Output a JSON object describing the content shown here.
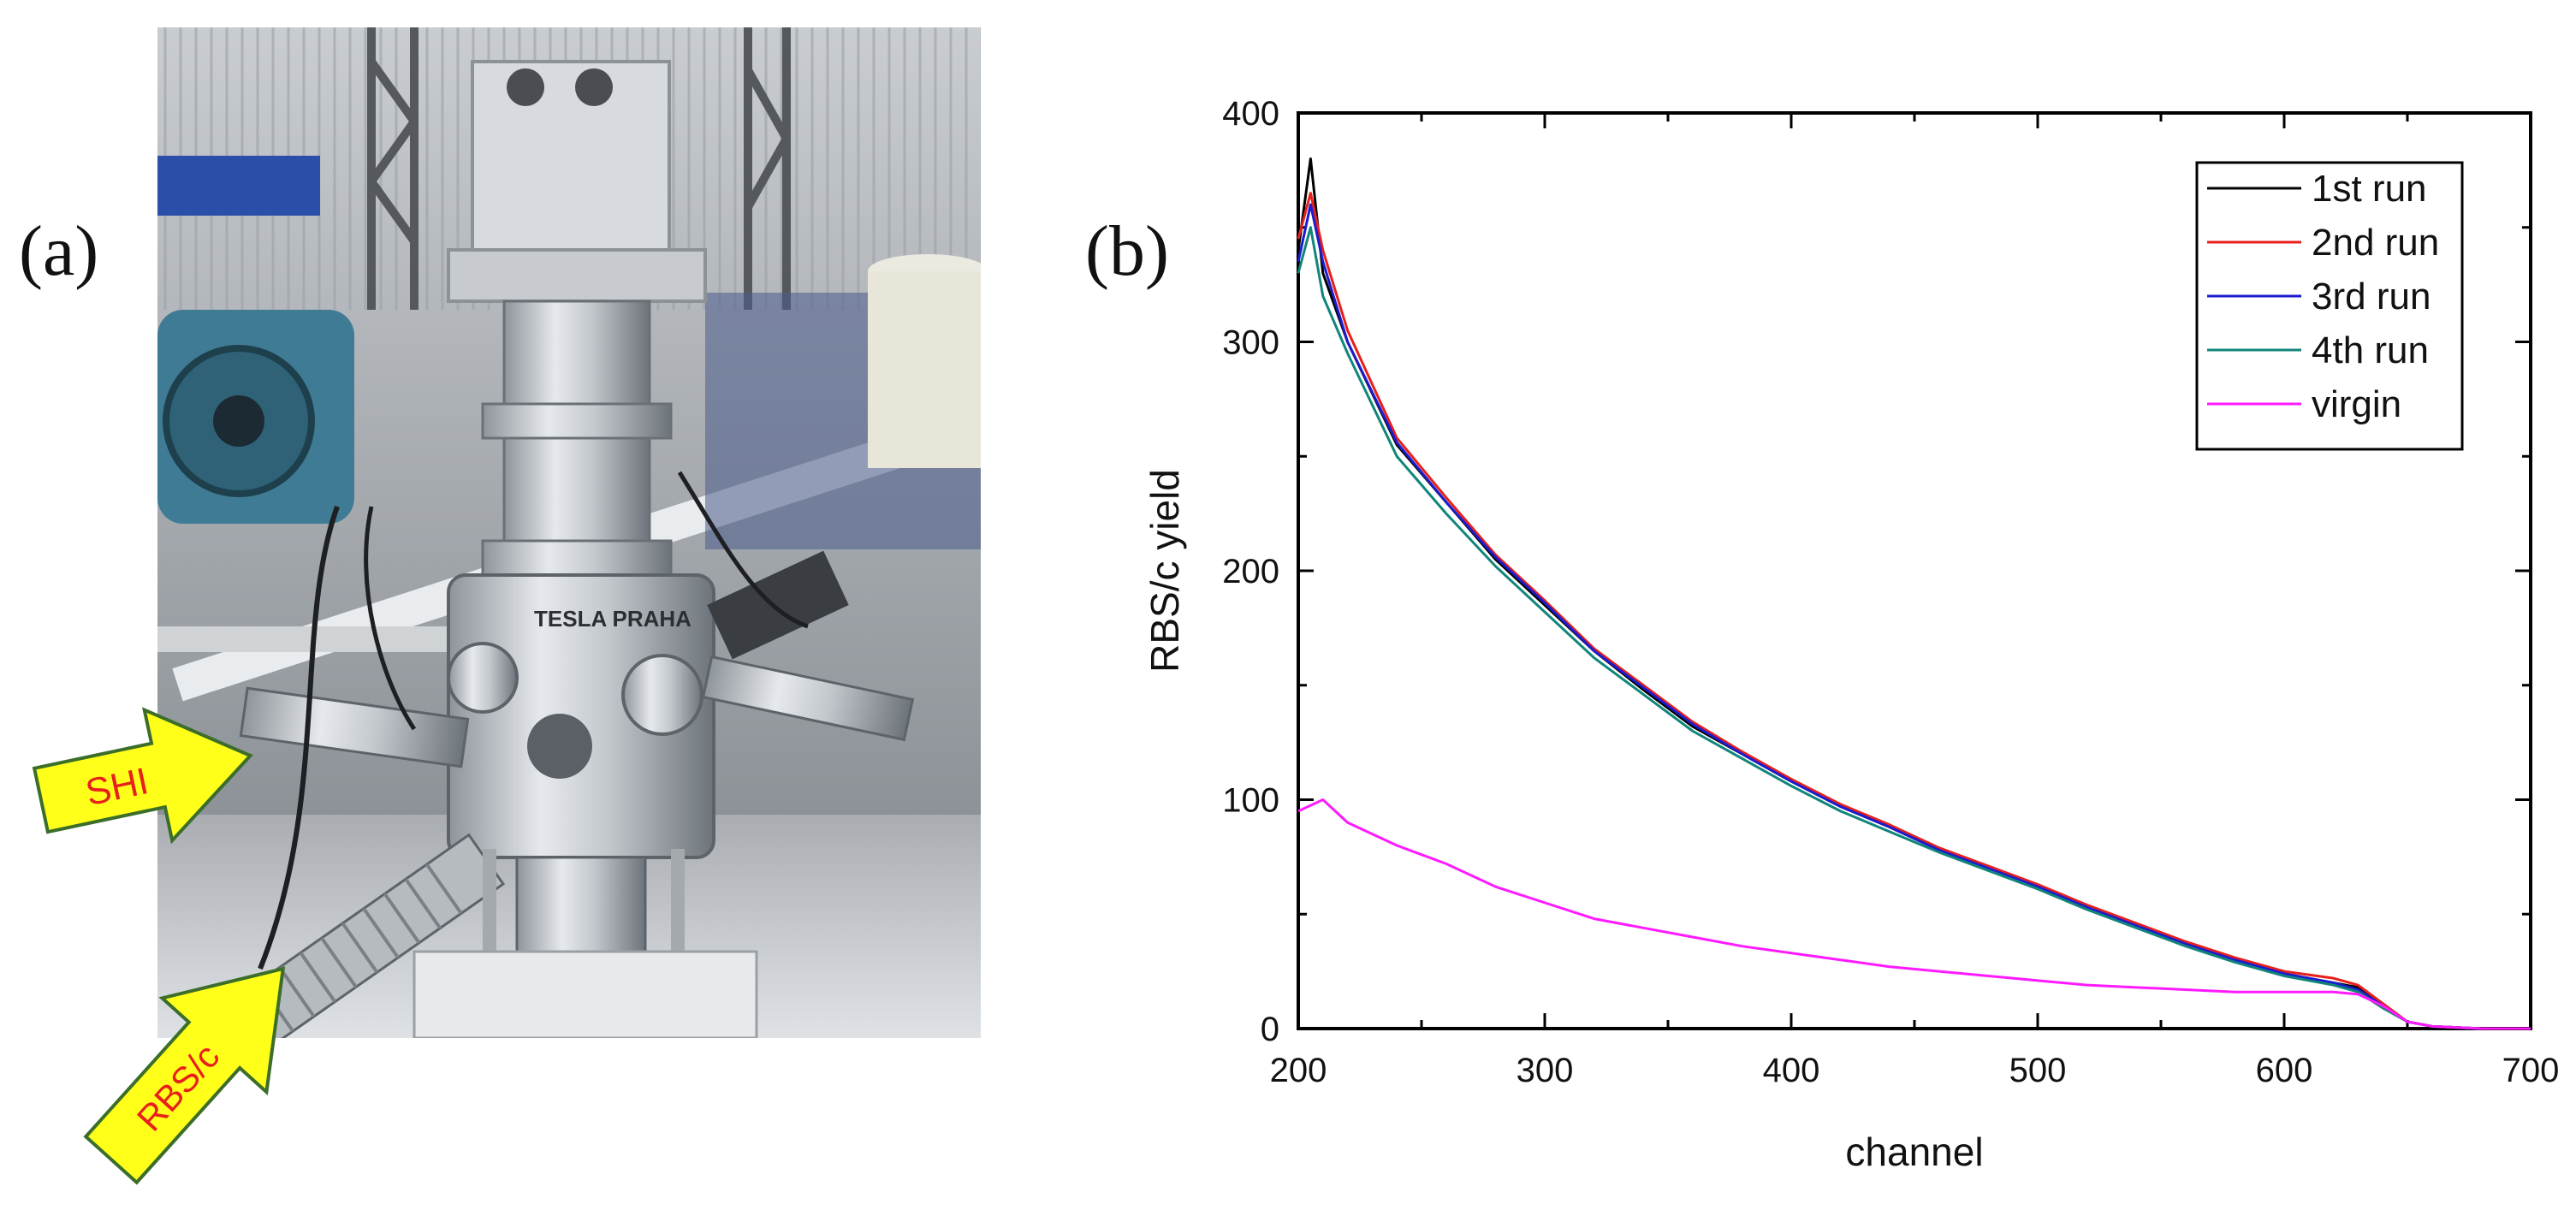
{
  "panels": {
    "a": "(a)",
    "b": "(b)"
  },
  "photo": {
    "chamber_label": "TESLA PRAHA",
    "arrows": [
      {
        "label": "SHI",
        "color": "#ffff1a",
        "text_color": "#e8201c"
      },
      {
        "label": "RBS/c",
        "color": "#ffff1a",
        "text_color": "#e8201c"
      }
    ]
  },
  "chart_data": {
    "type": "line",
    "title": "",
    "xlabel": "channel",
    "ylabel": "RBS/c yield",
    "xlim": [
      200,
      700
    ],
    "ylim": [
      0,
      400
    ],
    "xticks": [
      200,
      300,
      400,
      500,
      600,
      700
    ],
    "yticks": [
      0,
      100,
      200,
      300,
      400
    ],
    "legend_position": "top-right",
    "grid": false,
    "series": [
      {
        "name": "1st run",
        "color": "#000000",
        "x": [
          200,
          205,
          210,
          220,
          240,
          260,
          280,
          300,
          320,
          340,
          360,
          380,
          400,
          420,
          440,
          460,
          480,
          500,
          520,
          540,
          560,
          580,
          600,
          620,
          630,
          640,
          650,
          660,
          680,
          700
        ],
        "y": [
          340,
          380,
          330,
          300,
          255,
          230,
          205,
          185,
          165,
          148,
          132,
          120,
          108,
          97,
          88,
          78,
          70,
          62,
          53,
          45,
          37,
          30,
          24,
          20,
          18,
          10,
          3,
          1,
          0,
          0
        ]
      },
      {
        "name": "2nd run",
        "color": "#e8201c",
        "x": [
          200,
          205,
          210,
          220,
          240,
          260,
          280,
          300,
          320,
          340,
          360,
          380,
          400,
          420,
          440,
          460,
          480,
          500,
          520,
          540,
          560,
          580,
          600,
          620,
          630,
          640,
          650,
          660,
          680,
          700
        ],
        "y": [
          345,
          365,
          340,
          305,
          258,
          232,
          207,
          187,
          166,
          150,
          134,
          121,
          109,
          98,
          89,
          79,
          71,
          63,
          54,
          46,
          38,
          31,
          25,
          22,
          19,
          11,
          3,
          1,
          0,
          0
        ]
      },
      {
        "name": "3rd run",
        "color": "#1c1ccf",
        "x": [
          200,
          205,
          210,
          220,
          240,
          260,
          280,
          300,
          320,
          340,
          360,
          380,
          400,
          420,
          440,
          460,
          480,
          500,
          520,
          540,
          560,
          580,
          600,
          620,
          630,
          640,
          650,
          660,
          680,
          700
        ],
        "y": [
          335,
          360,
          335,
          300,
          256,
          230,
          206,
          186,
          165,
          149,
          133,
          120,
          108,
          97,
          88,
          78,
          70,
          62,
          53,
          45,
          37,
          30,
          24,
          20,
          17,
          10,
          3,
          1,
          0,
          0
        ]
      },
      {
        "name": "4th run",
        "color": "#11857a",
        "x": [
          200,
          205,
          210,
          220,
          240,
          260,
          280,
          300,
          320,
          340,
          360,
          380,
          400,
          420,
          440,
          460,
          480,
          500,
          520,
          540,
          560,
          580,
          600,
          620,
          630,
          640,
          650,
          660,
          680,
          700
        ],
        "y": [
          330,
          350,
          320,
          295,
          250,
          225,
          202,
          182,
          162,
          146,
          130,
          118,
          106,
          95,
          86,
          77,
          69,
          61,
          52,
          44,
          36,
          29,
          23,
          19,
          16,
          9,
          3,
          1,
          0,
          0
        ]
      },
      {
        "name": "virgin",
        "color": "#ff1aff",
        "x": [
          200,
          210,
          220,
          240,
          260,
          280,
          300,
          320,
          340,
          360,
          380,
          400,
          420,
          440,
          460,
          480,
          500,
          520,
          540,
          560,
          580,
          600,
          620,
          630,
          640,
          650,
          660,
          680,
          700
        ],
        "y": [
          95,
          100,
          90,
          80,
          72,
          62,
          55,
          48,
          44,
          40,
          36,
          33,
          30,
          27,
          25,
          23,
          21,
          19,
          18,
          17,
          16,
          16,
          16,
          15,
          10,
          3,
          1,
          0,
          0
        ]
      }
    ]
  }
}
